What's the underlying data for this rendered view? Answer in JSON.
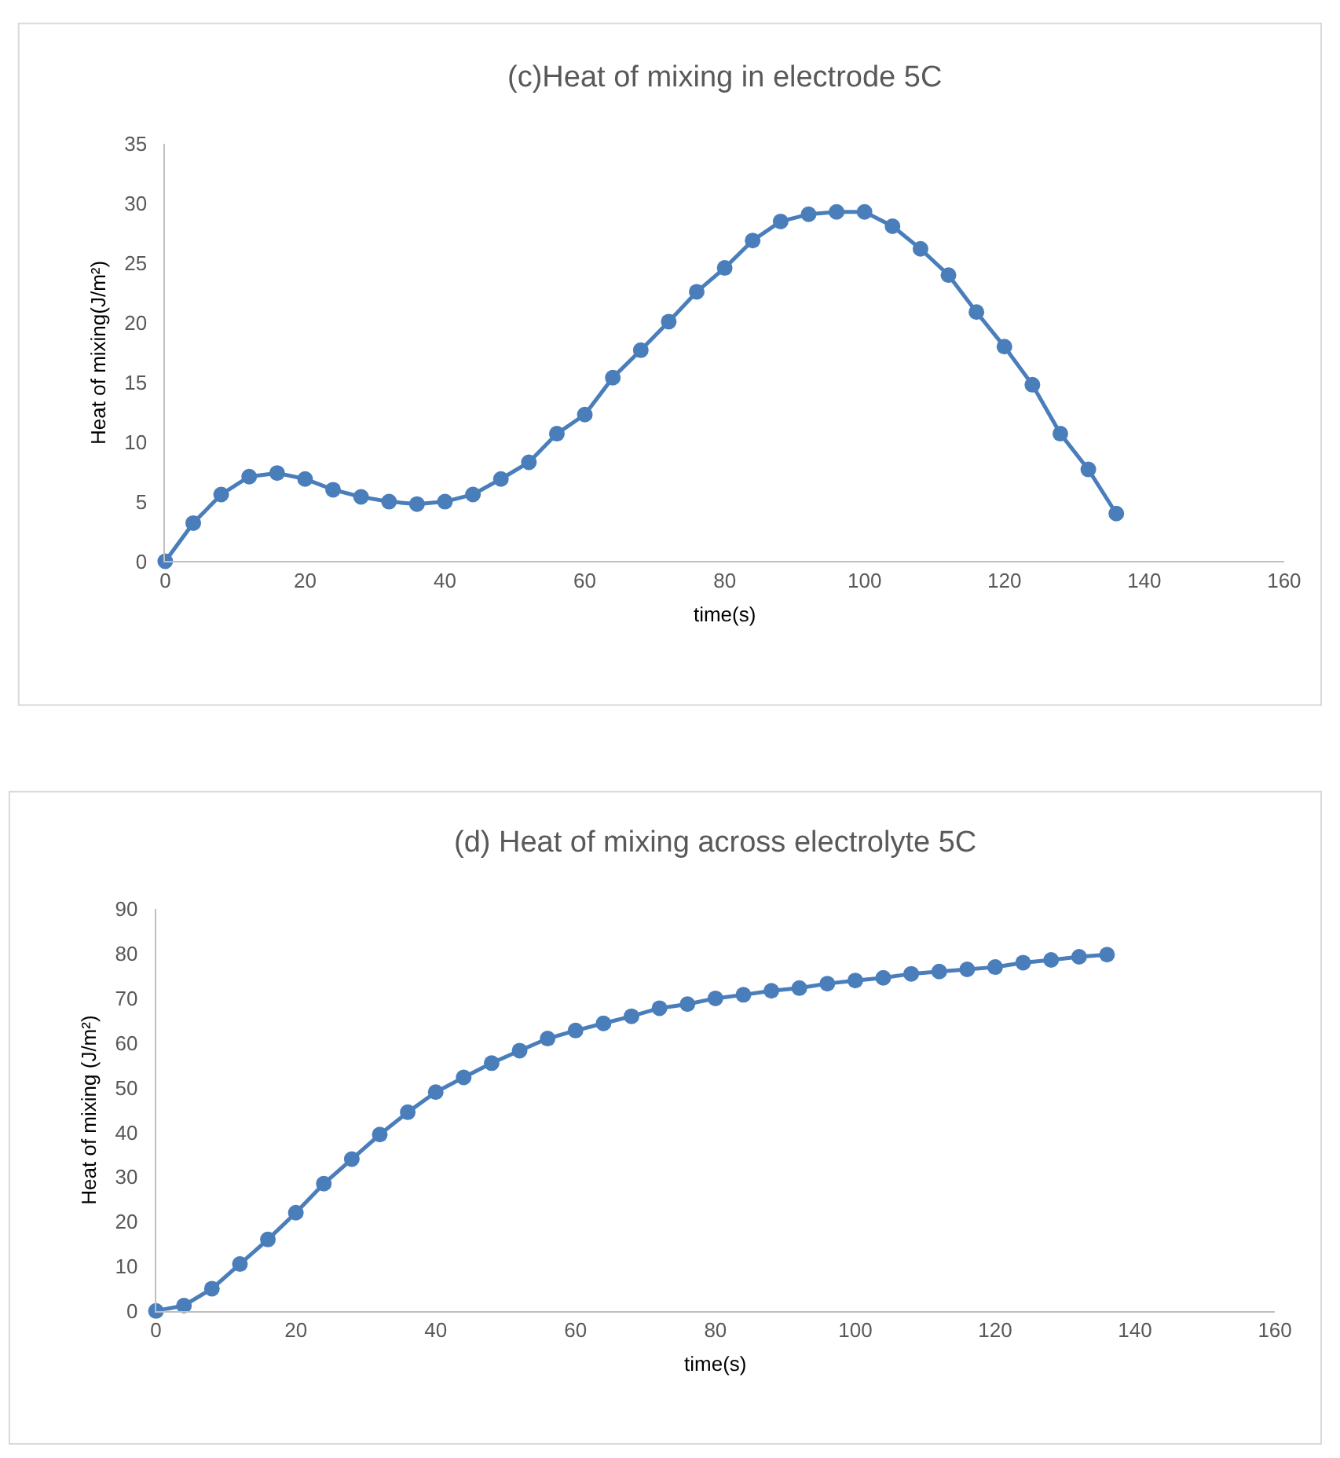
{
  "chart_data": [
    {
      "type": "line",
      "title": "(c)Heat of mixing in electrode 5C",
      "xlabel": "time(s)",
      "ylabel": "Heat of mixing(J/m²)",
      "x": [
        0,
        4,
        8,
        12,
        16,
        20,
        24,
        28,
        32,
        36,
        40,
        44,
        48,
        52,
        56,
        60,
        64,
        68,
        72,
        76,
        80,
        84,
        88,
        92,
        96,
        100,
        104,
        108,
        112,
        116,
        120,
        124,
        128,
        132,
        136
      ],
      "series": [
        {
          "color": "#4a7ebb",
          "values": [
            0,
            3.2,
            5.6,
            7.1,
            7.4,
            6.9,
            6.0,
            5.4,
            5.0,
            4.8,
            5.0,
            5.6,
            6.9,
            8.3,
            10.7,
            12.3,
            15.4,
            17.7,
            20.1,
            22.6,
            24.6,
            26.9,
            28.5,
            29.1,
            29.3,
            29.3,
            28.1,
            26.2,
            24.0,
            20.9,
            18.0,
            14.8,
            10.7,
            7.7,
            4.0
          ]
        }
      ],
      "xlim": [
        0,
        160
      ],
      "xticks": [
        0,
        20,
        40,
        60,
        80,
        100,
        120,
        140,
        160
      ],
      "ylim": [
        0,
        35
      ],
      "yticks": [
        0,
        5,
        10,
        15,
        20,
        25,
        30,
        35
      ],
      "grid": false,
      "marker": "circle",
      "line_style": "solid"
    },
    {
      "type": "line",
      "title": "(d) Heat of mixing across electrolyte 5C",
      "xlabel": "time(s)",
      "ylabel": "Heat of mixing (J/m²)",
      "x": [
        0,
        4,
        8,
        12,
        16,
        20,
        24,
        28,
        32,
        36,
        40,
        44,
        48,
        52,
        56,
        60,
        64,
        68,
        72,
        76,
        80,
        84,
        88,
        92,
        96,
        100,
        104,
        108,
        112,
        116,
        120,
        124,
        128,
        132,
        136
      ],
      "series": [
        {
          "color": "#4a7ebb",
          "values": [
            0,
            1.2,
            5,
            10.5,
            16,
            22,
            28.5,
            34,
            39.5,
            44.5,
            49,
            52.3,
            55.5,
            58.3,
            61,
            62.8,
            64.4,
            66,
            67.8,
            68.7,
            70,
            70.8,
            71.7,
            72.3,
            73.3,
            74,
            74.6,
            75.5,
            76,
            76.5,
            77,
            78,
            78.6,
            79.3,
            79.8
          ]
        }
      ],
      "xlim": [
        0,
        160
      ],
      "xticks": [
        0,
        20,
        40,
        60,
        80,
        100,
        120,
        140,
        160
      ],
      "ylim": [
        0,
        90
      ],
      "yticks": [
        0,
        10,
        20,
        30,
        40,
        50,
        60,
        70,
        80,
        90
      ],
      "grid": false,
      "marker": "circle",
      "line_style": "solid"
    }
  ]
}
